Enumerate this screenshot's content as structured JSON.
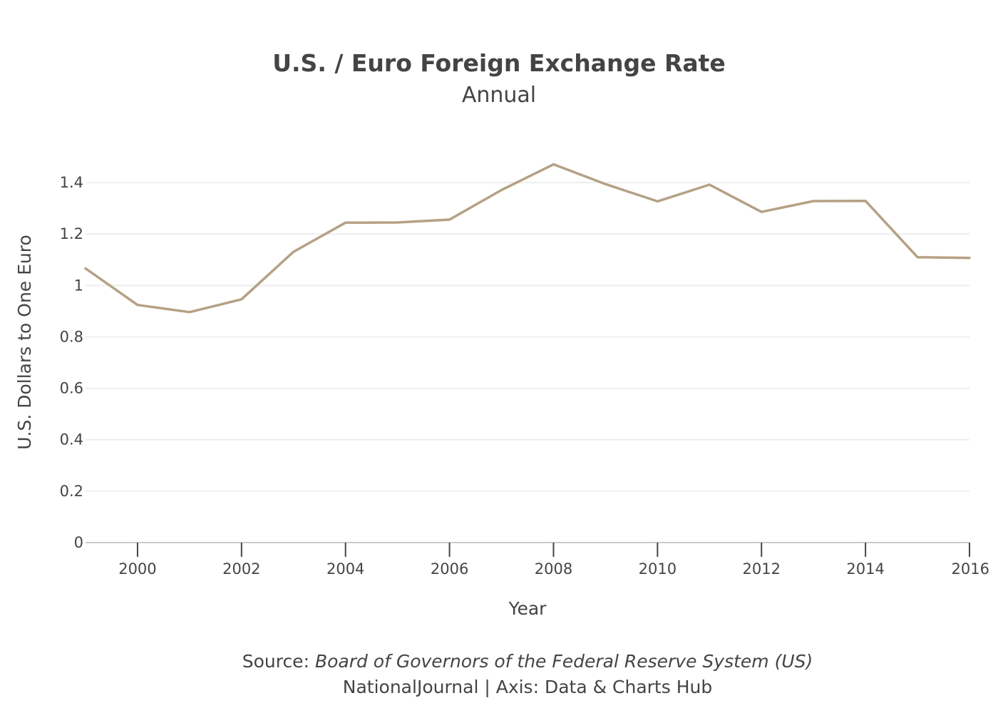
{
  "chart_data": {
    "type": "line",
    "title": "U.S. / Euro Foreign Exchange Rate",
    "subtitle": "Annual",
    "xlabel": "Year",
    "ylabel": "U.S. Dollars to One Euro",
    "xlim": [
      1999,
      2016
    ],
    "ylim": [
      0,
      1.5
    ],
    "x_ticks": [
      2000,
      2002,
      2004,
      2006,
      2008,
      2010,
      2012,
      2014,
      2016
    ],
    "y_ticks": [
      0,
      0.2,
      0.4,
      0.6,
      0.8,
      1,
      1.2,
      1.4
    ],
    "x_tick_labels": [
      "2000",
      "2002",
      "2004",
      "2006",
      "2008",
      "2010",
      "2012",
      "2014",
      "2016"
    ],
    "y_tick_labels": [
      "0",
      "0.2",
      "0.4",
      "0.6",
      "0.8",
      "1",
      "1.2",
      "1.4"
    ],
    "grid": true,
    "line_color": "#b5a185",
    "series": [
      {
        "x": [
          1999,
          2000,
          2001,
          2002,
          2003,
          2004,
          2005,
          2006,
          2007,
          2008,
          2009,
          2010,
          2011,
          2012,
          2013,
          2014,
          2015,
          2016
        ],
        "values": [
          1.066,
          0.924,
          0.896,
          0.946,
          1.131,
          1.244,
          1.245,
          1.256,
          1.371,
          1.471,
          1.394,
          1.327,
          1.392,
          1.286,
          1.328,
          1.329,
          1.11,
          1.107
        ]
      }
    ]
  },
  "source": {
    "prefix": "Source: ",
    "name": "Board of Governors of the Federal Reserve System (US)",
    "credit": "NationalJournal | Axis: Data & Charts Hub"
  }
}
